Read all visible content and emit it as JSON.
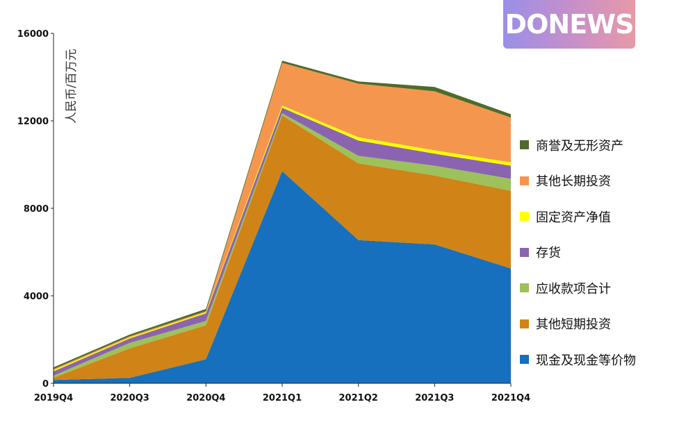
{
  "logo": {
    "text": "DONEWS"
  },
  "chart_data": {
    "type": "area",
    "stacked": true,
    "title": "",
    "xlabel": "",
    "ylabel": "人民币/百万元",
    "categories": [
      "2019Q4",
      "2020Q3",
      "2020Q4",
      "2021Q1",
      "2021Q2",
      "2021Q3",
      "2021Q4"
    ],
    "ylim": [
      0,
      16000
    ],
    "yticks": [
      0,
      4000,
      8000,
      12000,
      16000
    ],
    "grid": false,
    "legend_position": "right",
    "series": [
      {
        "name": "现金及现金等价物",
        "color": "#1670bd",
        "values": [
          150,
          250,
          1100,
          9700,
          6550,
          6350,
          5250
        ]
      },
      {
        "name": "其他短期投资",
        "color": "#d08316",
        "values": [
          100,
          1350,
          1550,
          2550,
          3500,
          3150,
          3550
        ]
      },
      {
        "name": "应收款项合计",
        "color": "#9dc15b",
        "values": [
          100,
          250,
          200,
          100,
          350,
          450,
          550
        ]
      },
      {
        "name": "存货",
        "color": "#8b64b0",
        "values": [
          200,
          200,
          350,
          250,
          700,
          550,
          600
        ]
      },
      {
        "name": "固定资产净值",
        "color": "#ffff00",
        "values": [
          50,
          50,
          50,
          100,
          150,
          150,
          150
        ]
      },
      {
        "name": "其他长期投资",
        "color": "#f5964e",
        "values": [
          50,
          50,
          50,
          1950,
          2450,
          2700,
          2050
        ]
      },
      {
        "name": "商誉及无形资产",
        "color": "#4e6b2c",
        "values": [
          80,
          80,
          100,
          100,
          100,
          200,
          150
        ]
      }
    ]
  }
}
